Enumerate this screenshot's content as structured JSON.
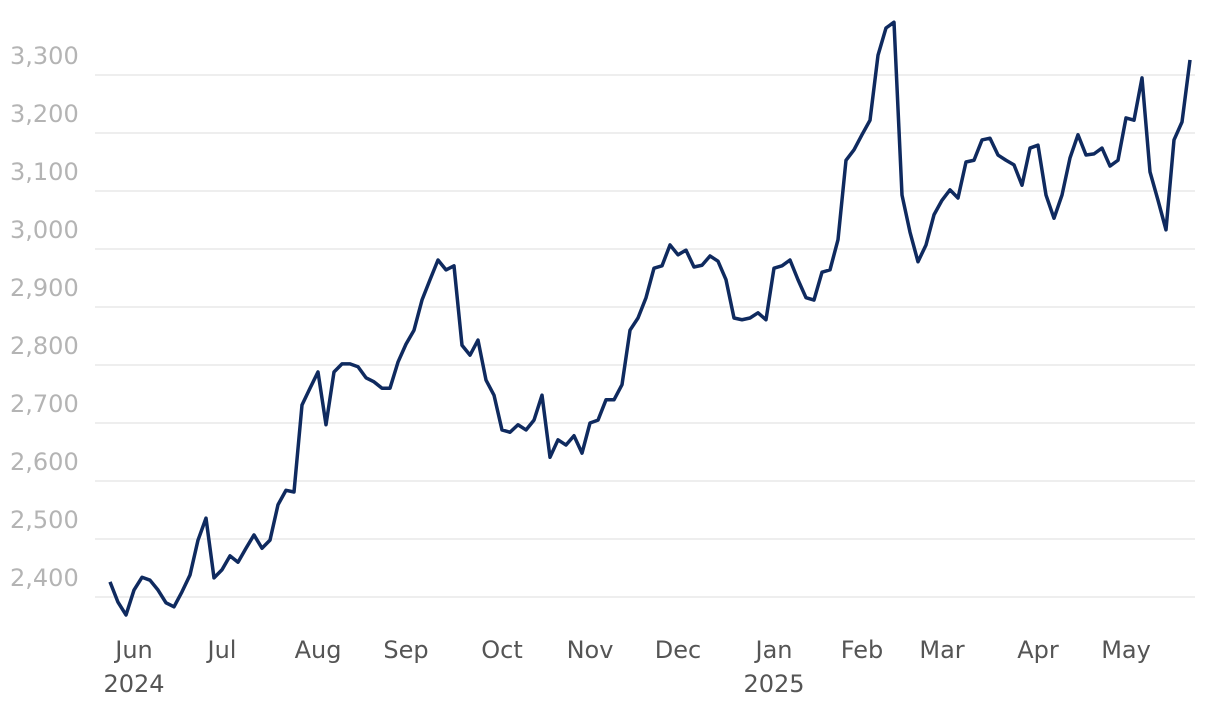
{
  "chart_data": {
    "type": "line",
    "categories": [
      null,
      null,
      null,
      "Jun 2024",
      null,
      null,
      null,
      null,
      null,
      null,
      null,
      null,
      null,
      null,
      "Jul",
      null,
      null,
      null,
      null,
      null,
      null,
      null,
      null,
      null,
      null,
      null,
      "Aug",
      null,
      null,
      null,
      null,
      null,
      null,
      null,
      null,
      null,
      null,
      "Sep",
      null,
      null,
      null,
      null,
      null,
      null,
      null,
      null,
      null,
      null,
      null,
      "Oct",
      null,
      null,
      null,
      null,
      null,
      null,
      null,
      null,
      null,
      null,
      "Nov",
      null,
      null,
      null,
      null,
      null,
      null,
      null,
      null,
      null,
      null,
      "Dec",
      null,
      null,
      null,
      null,
      null,
      null,
      null,
      null,
      null,
      null,
      null,
      "Jan 2025",
      null,
      null,
      null,
      null,
      null,
      null,
      null,
      null,
      null,
      null,
      "Feb",
      null,
      null,
      null,
      null,
      null,
      null,
      null,
      null,
      null,
      "Mar",
      null,
      null,
      null,
      null,
      null,
      null,
      null,
      null,
      null,
      null,
      null,
      "Apr",
      null,
      null,
      null,
      null,
      null,
      null,
      null,
      null,
      null,
      null,
      "May",
      null,
      null,
      null,
      null,
      null,
      null,
      null,
      null
    ],
    "series": [
      {
        "color": "#0f2a5f",
        "values": [
          2426,
          2391,
          2369,
          2412,
          2434,
          2429,
          2412,
          2390,
          2383,
          2409,
          2438,
          2498,
          2536,
          2433,
          2447,
          2471,
          2460,
          2484,
          2507,
          2484,
          2498,
          2559,
          2584,
          2581,
          2731,
          2760,
          2788,
          2697,
          2788,
          2802,
          2802,
          2797,
          2778,
          2771,
          2760,
          2760,
          2805,
          2836,
          2860,
          2912,
          2947,
          2981,
          2964,
          2971,
          2834,
          2817,
          2843,
          2774,
          2748,
          2688,
          2684,
          2697,
          2688,
          2705,
          2748,
          2641,
          2671,
          2662,
          2678,
          2648,
          2700,
          2705,
          2740,
          2740,
          2766,
          2860,
          2881,
          2916,
          2967,
          2971,
          3007,
          2990,
          2998,
          2969,
          2972,
          2988,
          2979,
          2947,
          2881,
          2878,
          2881,
          2890,
          2878,
          2967,
          2971,
          2981,
          2947,
          2916,
          2912,
          2960,
          2964,
          3016,
          3153,
          3171,
          3197,
          3222,
          3334,
          3381,
          3391,
          3093,
          3029,
          2978,
          3007,
          3059,
          3084,
          3102,
          3088,
          3150,
          3153,
          3188,
          3191,
          3162,
          3153,
          3145,
          3110,
          3174,
          3179,
          3093,
          3053,
          3093,
          3157,
          3197,
          3162,
          3164,
          3174,
          3143,
          3153,
          3226,
          3222,
          3295,
          3133,
          3084,
          3033,
          3188,
          3219,
          3326
        ]
      }
    ],
    "ylim": [
      2350,
      3400
    ],
    "yticks": [
      {
        "value": 2400,
        "label": "2,400"
      },
      {
        "value": 2500,
        "label": "2,500"
      },
      {
        "value": 2600,
        "label": "2,600"
      },
      {
        "value": 2700,
        "label": "2,700"
      },
      {
        "value": 2800,
        "label": "2,800"
      },
      {
        "value": 2900,
        "label": "2,900"
      },
      {
        "value": 3000,
        "label": "3,000"
      },
      {
        "value": 3100,
        "label": "3,100"
      },
      {
        "value": 3200,
        "label": "3,200"
      },
      {
        "value": 3300,
        "label": "3,300"
      }
    ],
    "grid": true
  }
}
